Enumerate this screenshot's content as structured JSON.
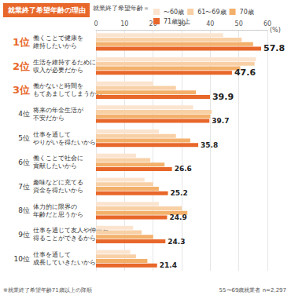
{
  "chart_data": {
    "type": "bar",
    "orientation": "horizontal",
    "title": "就業終了希望年齢の理由",
    "legend_title": "就業終了希望年齢＝",
    "legend": "top-right",
    "ranks": [
      "1位",
      "2位",
      "3位",
      "4位",
      "5位",
      "6位",
      "7位",
      "8位",
      "9位",
      "10位"
    ],
    "categories": [
      "働くことで健康を\n維持したいから",
      "生活を維持するために\n収入が必要だから",
      "働かないと時間を\nもてあましてしまうから",
      "将来の年金生活が\n不安だから",
      "仕事を通して\nやりがいを得たいから",
      "働くことで社会に\n貢献したいから",
      "趣味などに充てる\n資金を得たいから",
      "体力的に限界の\n年齢だと思うから",
      "仕事を通じて友人や仲間を\n得ることができるから",
      "仕事を通して\n成長していきたいから"
    ],
    "series": [
      {
        "name": "〜60歳",
        "color": "#fbe4cf",
        "values": [
          44.5,
          56.0,
          20.0,
          34.0,
          22.0,
          14.0,
          17.0,
          22.0,
          13.0,
          12.0
        ]
      },
      {
        "name": "61〜69歳",
        "color": "#f8d0a6",
        "values": [
          51.0,
          55.5,
          28.0,
          40.5,
          28.0,
          19.0,
          20.0,
          30.0,
          16.0,
          14.0
        ]
      },
      {
        "name": "70歳",
        "color": "#f3b06b",
        "values": [
          55.0,
          50.5,
          35.0,
          40.0,
          33.0,
          24.0,
          22.0,
          32.0,
          20.0,
          18.0
        ]
      },
      {
        "name": "71歳以上",
        "color": "#e8672a",
        "values": [
          57.8,
          47.6,
          39.9,
          39.7,
          35.8,
          26.6,
          25.2,
          24.9,
          24.3,
          21.4
        ],
        "data_labels": true
      }
    ],
    "xlim": [
      0,
      60
    ],
    "xticks": [
      0,
      10,
      20,
      30,
      40,
      50,
      60
    ],
    "xlabel": "(%)",
    "grid": true,
    "annotations": [
      "※就業終了希望年齢71歳以上の降順",
      "55〜69歳就業者 n=2,297"
    ]
  }
}
